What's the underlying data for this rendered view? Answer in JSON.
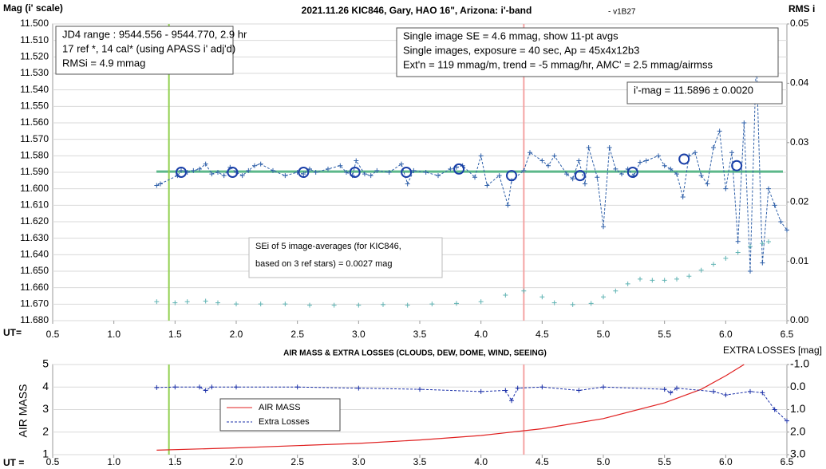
{
  "chart_data": [
    {
      "type": "scatter",
      "title": "2021.11.26 KIC846, Gary, HAO 16\", Arizona: i'-band",
      "subtitle": "- v1B27",
      "y_label": "Mag (i' scale)",
      "y2_label": "RMS i",
      "x_label": "UT=",
      "xlim": [
        0.5,
        6.5
      ],
      "xticks": [
        0.5,
        {
          "value": 1,
          "label": "1.0"
        },
        1.5,
        {
          "value": 2,
          "label": "2.0"
        },
        2.5,
        {
          "value": 3,
          "label": "3.0"
        },
        3.5,
        {
          "value": 4,
          "label": "4.0"
        },
        4.5,
        {
          "value": 5,
          "label": "5.0"
        },
        5.5,
        {
          "value": 6,
          "label": "6.0"
        },
        6.5
      ],
      "ylim": [
        11.68,
        11.5
      ],
      "yticks": [
        {
          "value": 11.5,
          "label": "11.500"
        },
        {
          "value": 11.51,
          "label": "11.510"
        },
        {
          "value": 11.52,
          "label": "11.520"
        },
        {
          "value": 11.53,
          "label": "11.530"
        },
        {
          "value": 11.54,
          "label": "11.540"
        },
        {
          "value": 11.55,
          "label": "11.550"
        },
        {
          "value": 11.56,
          "label": "11.560"
        },
        {
          "value": 11.57,
          "label": "11.570"
        },
        {
          "value": 11.58,
          "label": "11.580"
        },
        {
          "value": 11.59,
          "label": "11.590"
        },
        {
          "value": 11.6,
          "label": "11.600"
        },
        {
          "value": 11.61,
          "label": "11.610"
        },
        {
          "value": 11.62,
          "label": "11.620"
        },
        {
          "value": 11.63,
          "label": "11.630"
        },
        {
          "value": 11.64,
          "label": "11.640"
        },
        {
          "value": 11.65,
          "label": "11.650"
        },
        {
          "value": 11.66,
          "label": "11.660"
        },
        {
          "value": 11.67,
          "label": "11.670"
        },
        {
          "value": 11.68,
          "label": "11.680"
        }
      ],
      "y2lim": [
        0,
        0.05
      ],
      "y2ticks": [
        {
          "value": 0,
          "label": "0.00"
        },
        {
          "value": 0.01,
          "label": "0.01"
        },
        {
          "value": 0.02,
          "label": "0.02"
        },
        {
          "value": 0.03,
          "label": "0.03"
        },
        {
          "value": 0.04,
          "label": "0.04"
        },
        {
          "value": 0.05,
          "label": "0.05"
        }
      ],
      "grid": true,
      "hlines": [
        {
          "value": 11.5896,
          "color": "#5cb88a"
        }
      ],
      "vlines": [
        {
          "value": 1.45,
          "color": "#92d050"
        },
        {
          "value": 4.35,
          "color": "#f4a3a3"
        }
      ],
      "series": [
        {
          "color": "#2e5fa8",
          "marker": "plus",
          "line": "dashed",
          "x": [
            1.35,
            1.38,
            1.52,
            1.55,
            1.6,
            1.65,
            1.7,
            1.75,
            1.8,
            1.85,
            1.9,
            1.95,
            2.0,
            2.05,
            2.1,
            2.15,
            2.2,
            2.3,
            2.4,
            2.5,
            2.55,
            2.6,
            2.65,
            2.75,
            2.85,
            2.9,
            2.95,
            2.98,
            3.05,
            3.1,
            3.15,
            3.25,
            3.35,
            3.4,
            3.45,
            3.55,
            3.65,
            3.75,
            3.8,
            3.85,
            3.95,
            4.0,
            4.05,
            4.15,
            4.22,
            4.25,
            4.35,
            4.4,
            4.5,
            4.55,
            4.6,
            4.7,
            4.75,
            4.8,
            4.85,
            4.88,
            4.95,
            5.0,
            5.05,
            5.1,
            5.15,
            5.2,
            5.25,
            5.3,
            5.35,
            5.45,
            5.5,
            5.55,
            5.6,
            5.65,
            5.7,
            5.75,
            5.8,
            5.85,
            5.9,
            5.95,
            6.0,
            6.05,
            6.1,
            6.15,
            6.2,
            6.25,
            6.3,
            6.35,
            6.4,
            6.45,
            6.5
          ],
          "values": [
            11.598,
            11.597,
            11.592,
            11.589,
            11.59,
            11.589,
            11.588,
            11.585,
            11.591,
            11.59,
            11.592,
            11.587,
            11.59,
            11.592,
            11.589,
            11.586,
            11.585,
            11.589,
            11.592,
            11.59,
            11.591,
            11.588,
            11.59,
            11.588,
            11.586,
            11.59,
            11.592,
            11.583,
            11.591,
            11.592,
            11.589,
            11.59,
            11.585,
            11.597,
            11.589,
            11.59,
            11.592,
            11.588,
            11.587,
            11.586,
            11.593,
            11.58,
            11.598,
            11.592,
            11.61,
            11.595,
            11.589,
            11.578,
            11.583,
            11.586,
            11.58,
            11.591,
            11.594,
            11.583,
            11.597,
            11.575,
            11.593,
            11.623,
            11.575,
            11.588,
            11.591,
            11.588,
            11.592,
            11.584,
            11.583,
            11.58,
            11.586,
            11.588,
            11.591,
            11.605,
            11.58,
            11.578,
            11.592,
            11.597,
            11.575,
            11.565,
            11.6,
            11.578,
            11.632,
            11.56,
            11.65,
            11.52,
            11.645,
            11.6,
            11.61,
            11.62,
            11.625
          ]
        },
        {
          "color": "#1a3fa8",
          "marker": "circle",
          "line": "none",
          "x": [
            1.55,
            1.97,
            2.55,
            2.97,
            3.39,
            3.82,
            4.25,
            4.81,
            5.24,
            5.66,
            6.09
          ],
          "values": [
            11.59,
            11.59,
            11.59,
            11.59,
            11.59,
            11.588,
            11.592,
            11.592,
            11.59,
            11.582,
            11.586
          ]
        },
        {
          "color": "#5fb3b3",
          "marker": "plus",
          "line": "none",
          "axis": "y2",
          "x": [
            1.35,
            1.5,
            1.6,
            1.75,
            1.85,
            2.0,
            2.2,
            2.4,
            2.6,
            2.8,
            3.0,
            3.2,
            3.4,
            3.6,
            3.8,
            4.0,
            4.2,
            4.35,
            4.5,
            4.6,
            4.75,
            4.9,
            5.0,
            5.1,
            5.2,
            5.3,
            5.4,
            5.5,
            5.6,
            5.7,
            5.8,
            5.9,
            6.0,
            6.1,
            6.2,
            6.3,
            6.35
          ],
          "values": [
            0.0032,
            0.003,
            0.0032,
            0.0033,
            0.003,
            0.0028,
            0.0028,
            0.0028,
            0.0026,
            0.0026,
            0.0026,
            0.0027,
            0.0026,
            0.0028,
            0.0029,
            0.0032,
            0.0043,
            0.005,
            0.004,
            0.003,
            0.0027,
            0.0029,
            0.004,
            0.005,
            0.0062,
            0.007,
            0.0068,
            0.0068,
            0.007,
            0.0075,
            0.0085,
            0.0095,
            0.0105,
            0.0115,
            0.0125,
            0.013,
            0.0133
          ]
        }
      ],
      "annotations": [
        {
          "lines": [
            "JD4 range : 9544.556 - 9544.770, 2.9  hr",
            "17 ref *, 14 cal* (using APASS i' adj'd)",
            "RMSi = 4.9 mmag"
          ]
        },
        {
          "lines": [
            "Single image SE = 4.6 mmag, show 11-pt avgs",
            "Single images, exposure = 40 sec, Ap = 45x4x12b3",
            "Ext'n = 119 mmag/m, trend = -5 mmag/hr, AMC' = 2.5 mmag/airmss"
          ]
        },
        {
          "lines": [
            "i'-mag = 11.5896 ± 0.0020"
          ]
        },
        {
          "lines": [
            "SEi of 5 image-averages (for KIC846,",
            "based on 3 ref stars) = 0.0027 mag"
          ]
        }
      ]
    },
    {
      "type": "line",
      "title": "AIR MASS & EXTRA LOSSES (CLOUDS, DEW, DOME, WIND, SEEING)",
      "y_label": "AIR MASS",
      "y2_label": "EXTRA LOSSES [mag]",
      "x_label": "UT =",
      "xlim": [
        0.5,
        6.5
      ],
      "xticks": [
        0.5,
        {
          "value": 1,
          "label": "1.0"
        },
        1.5,
        {
          "value": 2,
          "label": "2.0"
        },
        2.5,
        {
          "value": 3,
          "label": "3.0"
        },
        3.5,
        {
          "value": 4,
          "label": "4.0"
        },
        4.5,
        {
          "value": 5,
          "label": "5.0"
        },
        5.5,
        {
          "value": 6,
          "label": "6.0"
        },
        6.5
      ],
      "ylim": [
        1,
        5
      ],
      "yticks": [
        1,
        2,
        3,
        4,
        5
      ],
      "y2lim": [
        3,
        -1
      ],
      "y2ticks": [
        {
          "value": -1,
          "label": "-1.0"
        },
        {
          "value": 0,
          "label": "0.0"
        },
        {
          "value": 1,
          "label": "1.0"
        },
        {
          "value": 2,
          "label": "2.0"
        },
        {
          "value": 3,
          "label": "3.0"
        }
      ],
      "grid": true,
      "vlines": [
        {
          "value": 1.45,
          "color": "#92d050"
        },
        {
          "value": 4.35,
          "color": "#f4a3a3"
        }
      ],
      "series": [
        {
          "name": "AIR MASS",
          "color": "#e02020",
          "marker": "none",
          "line": "solid",
          "x": [
            1.35,
            2.0,
            2.5,
            3.0,
            3.5,
            4.0,
            4.5,
            5.0,
            5.5,
            5.8,
            6.0,
            6.15
          ],
          "values": [
            1.2,
            1.3,
            1.4,
            1.5,
            1.65,
            1.85,
            2.15,
            2.6,
            3.3,
            3.9,
            4.5,
            5.0
          ]
        },
        {
          "name": "Extra Losses",
          "color": "#1a2fa8",
          "marker": "plus",
          "line": "dashed",
          "axis": "y2",
          "x": [
            1.35,
            1.5,
            1.7,
            1.75,
            1.8,
            2.0,
            2.5,
            3.0,
            3.5,
            4.0,
            4.2,
            4.25,
            4.3,
            4.5,
            4.8,
            5.0,
            5.5,
            5.55,
            5.6,
            5.9,
            6.0,
            6.2,
            6.3,
            6.4,
            6.5
          ],
          "values": [
            0.02,
            0.0,
            0.0,
            0.15,
            0.0,
            0.0,
            0.0,
            0.05,
            0.1,
            0.2,
            0.15,
            0.6,
            0.05,
            0.0,
            0.15,
            0.0,
            0.1,
            0.25,
            0.05,
            0.2,
            0.35,
            0.2,
            0.25,
            1.0,
            1.5
          ]
        }
      ],
      "legend": "center-left"
    }
  ]
}
